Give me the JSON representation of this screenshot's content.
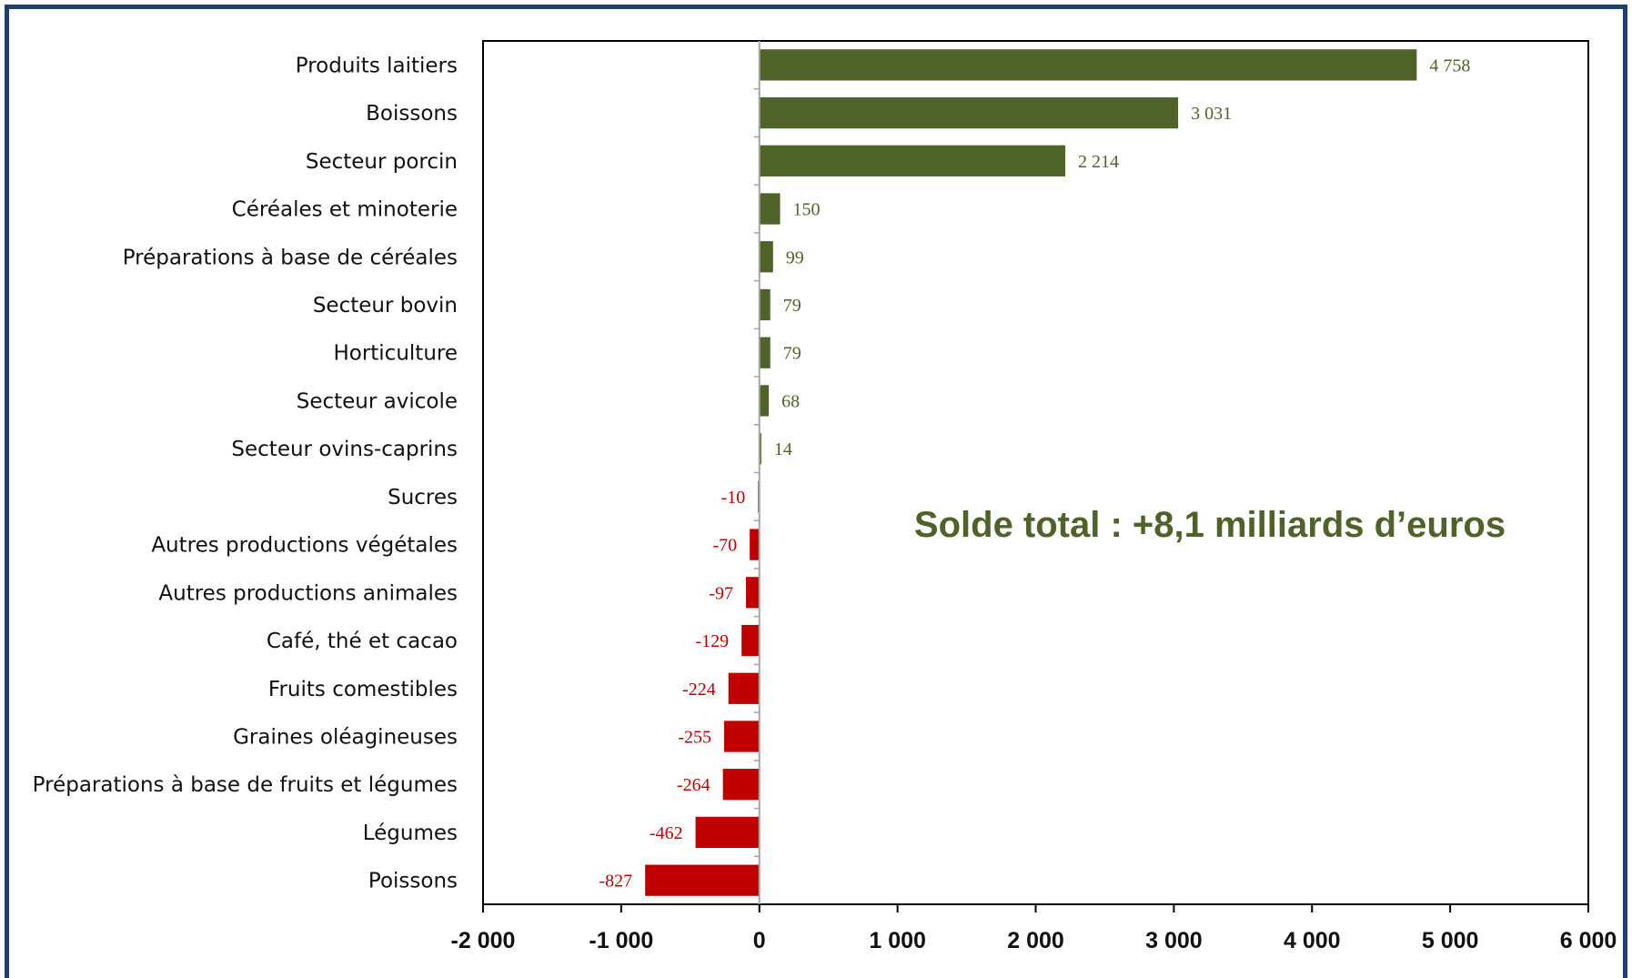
{
  "colors": {
    "positive": "#4f6228",
    "negative": "#c00000",
    "frame": "#1f3f73",
    "axis": "#000000",
    "zero_line": "#a6a6a6"
  },
  "chart_data": {
    "type": "bar",
    "orientation": "horizontal",
    "categories": [
      "Produits laitiers",
      "Boissons",
      "Secteur porcin",
      "Céréales et minoterie",
      "Préparations à base de céréales",
      "Secteur bovin",
      "Horticulture",
      "Secteur avicole",
      "Secteur ovins-caprins",
      "Sucres",
      "Autres productions végétales",
      "Autres productions animales",
      "Café, thé et cacao",
      "Fruits comestibles",
      "Graines oléagineuses",
      "Préparations à base de fruits et légumes",
      "Légumes",
      "Poissons"
    ],
    "values": [
      4758,
      3031,
      2214,
      150,
      99,
      79,
      79,
      68,
      14,
      -10,
      -70,
      -97,
      -129,
      -224,
      -255,
      -264,
      -462,
      -827
    ],
    "value_labels": [
      "4 758",
      "3 031",
      "2 214",
      "150",
      "99",
      "79",
      "79",
      "68",
      "14",
      "-10",
      "-70",
      "-97",
      "-129",
      "-224",
      "-255",
      "-264",
      "-462",
      "-827"
    ],
    "xlim": [
      -2000,
      6000
    ],
    "xticks": [
      -2000,
      -1000,
      0,
      1000,
      2000,
      3000,
      4000,
      5000,
      6000
    ],
    "xtick_labels": [
      "-2 000",
      "-1 000",
      "0",
      "1 000",
      "2 000",
      "3 000",
      "4 000",
      "5 000",
      "6 000"
    ],
    "title": "",
    "xlabel": "",
    "ylabel": "",
    "grid": false,
    "legend": "none",
    "annotation": "Solde total : +8,1 milliards d’euros"
  }
}
